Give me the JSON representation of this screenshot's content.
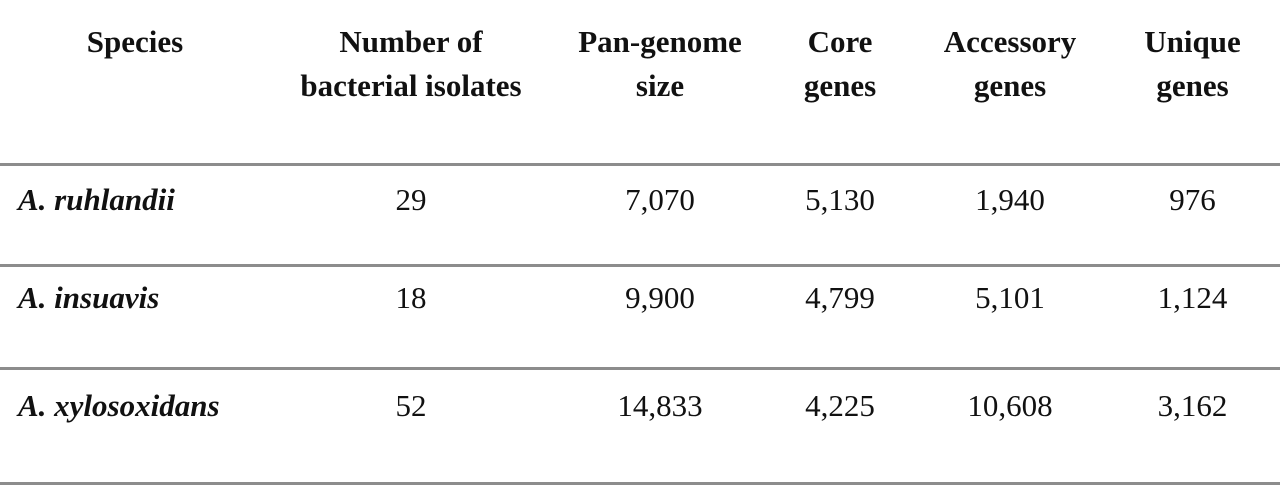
{
  "table": {
    "headers": [
      [
        "Species"
      ],
      [
        "Number of",
        "bacterial isolates"
      ],
      [
        "Pan-genome",
        "size"
      ],
      [
        "Core",
        "genes"
      ],
      [
        "Accessory",
        "genes"
      ],
      [
        "Unique",
        "genes"
      ]
    ],
    "rows": [
      [
        "A. ruhlandii",
        "29",
        "7,070",
        "5,130",
        "1,940",
        "976"
      ],
      [
        "A. insuavis",
        "18",
        "9,900",
        "4,799",
        "5,101",
        "1,124"
      ],
      [
        "A. xylosoxidans",
        "52",
        "14,833",
        "4,225",
        "10,608",
        "3,162"
      ]
    ]
  }
}
